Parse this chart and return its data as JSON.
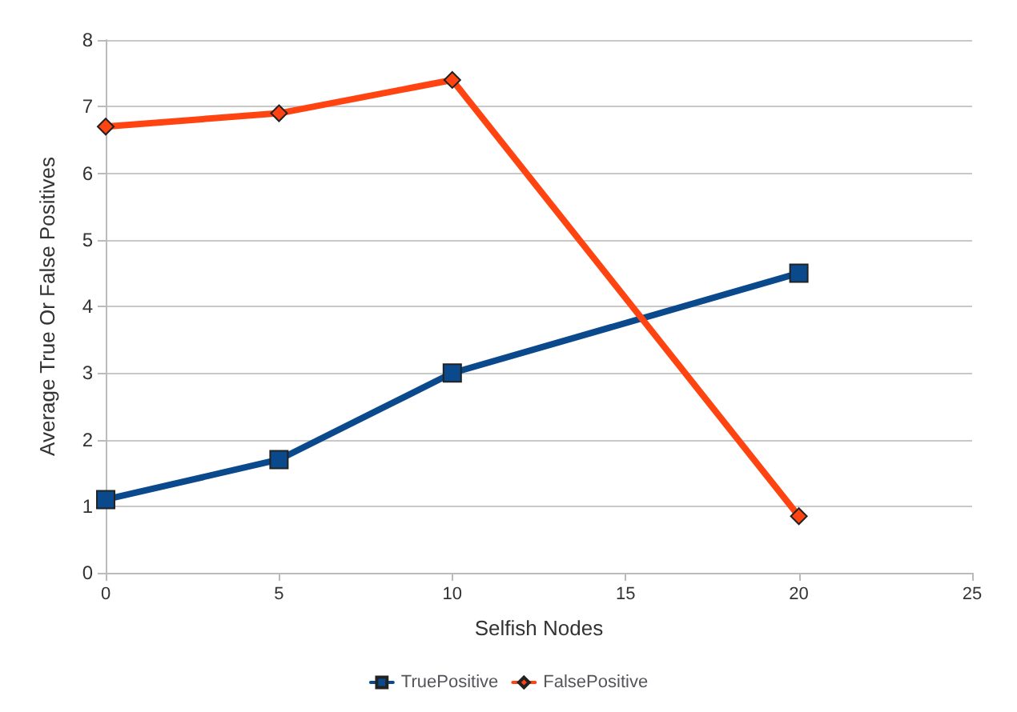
{
  "chart_data": {
    "type": "line",
    "xlabel": "Selfish Nodes",
    "ylabel": "Average True Or False Positives",
    "x": [
      0,
      5,
      10,
      20
    ],
    "series": [
      {
        "name": "TruePositive",
        "color": "#0a4a8c",
        "values": [
          1.1,
          1.7,
          3.0,
          4.5
        ],
        "marker": "square"
      },
      {
        "name": "FalsePositive",
        "color": "#ff4411",
        "values": [
          6.7,
          6.9,
          7.4,
          0.85
        ],
        "marker": "diamond"
      }
    ],
    "xlim": [
      0,
      25
    ],
    "xticks": [
      0,
      5,
      10,
      15,
      20,
      25
    ],
    "ylim": [
      0,
      8
    ],
    "yticks": [
      0,
      1,
      2,
      3,
      4,
      5,
      6,
      7,
      8
    ],
    "grid": "y",
    "legend": "bottom",
    "line_style": "solid"
  }
}
